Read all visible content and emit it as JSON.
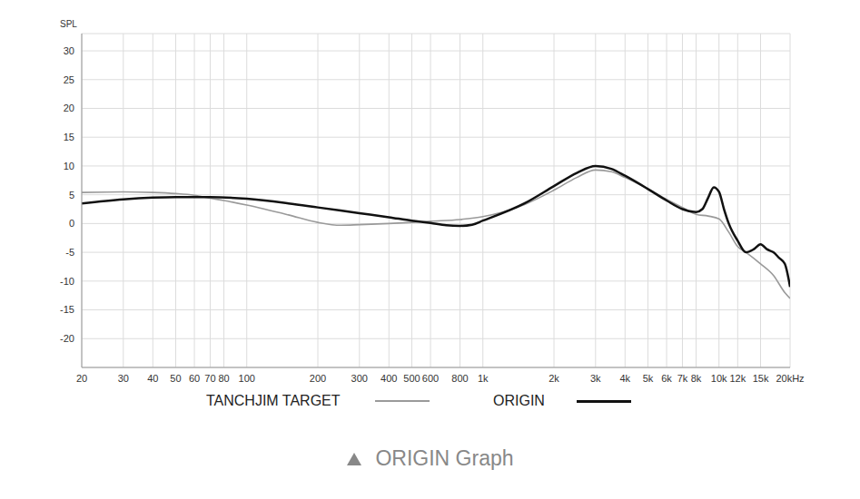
{
  "chart_data": {
    "type": "line",
    "title": "ORIGIN Graph",
    "y_label": "SPL",
    "log": "x",
    "grid": true,
    "legend": "bottom",
    "xlim": [
      20,
      20000
    ],
    "xticks": [
      20,
      30,
      40,
      50,
      60,
      70,
      80,
      100,
      200,
      300,
      400,
      {
        "value": 500,
        "label": "500"
      },
      600,
      800,
      {
        "value": 1000,
        "label": "1k"
      },
      {
        "value": 2000,
        "label": "2k"
      },
      {
        "value": 3000,
        "label": "3k"
      },
      {
        "value": 4000,
        "label": "4k"
      },
      {
        "value": 5000,
        "label": "5k"
      },
      {
        "value": 6000,
        "label": "6k"
      },
      {
        "value": 7000,
        "label": "7k"
      },
      {
        "value": 8000,
        "label": "8k"
      },
      {
        "value": 10000,
        "label": "10k"
      },
      {
        "value": 12000,
        "label": "12k"
      },
      {
        "value": 15000,
        "label": "15k"
      },
      {
        "value": 20000,
        "label": "20kHz"
      }
    ],
    "ylim": [
      -25,
      33
    ],
    "yticks": [
      -20,
      -15,
      -10,
      -5,
      0,
      5,
      10,
      15,
      20,
      25,
      30
    ],
    "series": [
      {
        "name": "TANCHJIM TARGET",
        "color": "#9a9a9a",
        "x": [
          20,
          30,
          40,
          50,
          60,
          70,
          80,
          100,
          150,
          200,
          250,
          300,
          400,
          500,
          600,
          800,
          1000,
          1500,
          2000,
          2500,
          3000,
          3500,
          4000,
          5000,
          6000,
          7000,
          8000,
          9000,
          10000,
          11000,
          12000,
          13000,
          15000,
          17000,
          19000,
          20000
        ],
        "values": [
          5.4,
          5.5,
          5.4,
          5.2,
          4.9,
          4.4,
          4.0,
          3.2,
          1.5,
          0.2,
          -0.3,
          -0.2,
          0,
          0.2,
          0.4,
          0.7,
          1.2,
          3.3,
          5.8,
          8.0,
          9.3,
          9.0,
          8.0,
          6.0,
          4.2,
          2.8,
          1.6,
          1.3,
          0.8,
          -1.5,
          -4,
          -5,
          -7,
          -9,
          -12,
          -13
        ]
      },
      {
        "name": "ORIGIN",
        "color": "#111111",
        "x": [
          20,
          30,
          40,
          50,
          60,
          70,
          100,
          150,
          200,
          300,
          400,
          500,
          600,
          700,
          800,
          900,
          1000,
          1500,
          2000,
          2500,
          3000,
          3500,
          4000,
          5000,
          6000,
          7000,
          8000,
          8500,
          9000,
          9500,
          10000,
          10500,
          11000,
          12000,
          13000,
          14000,
          15000,
          16000,
          17000,
          18000,
          19000,
          20000
        ],
        "values": [
          3.5,
          4.2,
          4.5,
          4.6,
          4.6,
          4.6,
          4.3,
          3.5,
          2.8,
          1.8,
          1.1,
          0.5,
          0.1,
          -0.3,
          -0.4,
          -0.2,
          0.5,
          3.5,
          6.5,
          8.8,
          10,
          9.5,
          8.3,
          6.0,
          4.0,
          2.5,
          2.0,
          2.5,
          4.5,
          6.3,
          5.5,
          2.5,
          0,
          -3,
          -5,
          -4.5,
          -3.6,
          -4.5,
          -5.0,
          -6,
          -7,
          -11
        ]
      }
    ]
  }
}
